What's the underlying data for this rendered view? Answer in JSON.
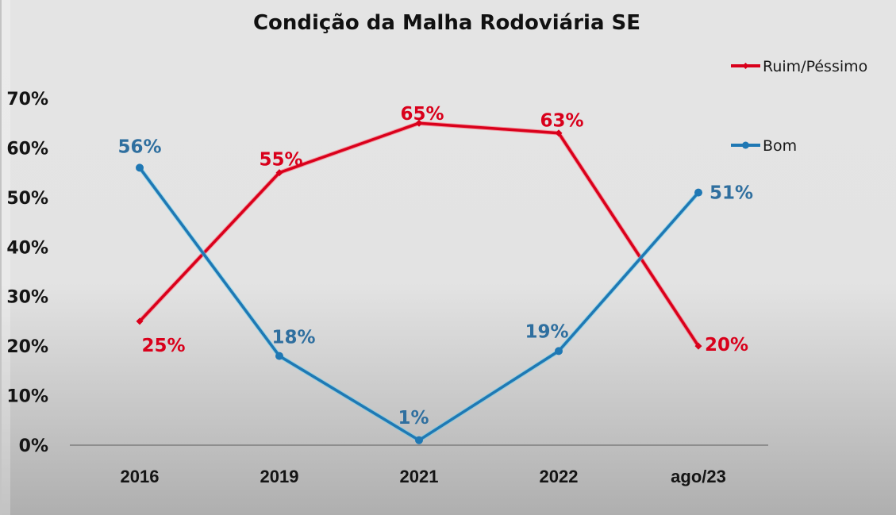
{
  "chart_data": {
    "type": "line",
    "title": "Condição da Malha Rodoviária SE",
    "xlabel": "",
    "ylabel": "",
    "categories": [
      "2016",
      "2019",
      "2021",
      "2022",
      "ago/23"
    ],
    "ylim": [
      0,
      70
    ],
    "yticks": [
      0,
      10,
      20,
      30,
      40,
      50,
      60,
      70
    ],
    "ytick_labels": [
      "0%",
      "10%",
      "20%",
      "30%",
      "40%",
      "50%",
      "60%",
      "70%"
    ],
    "grid": false,
    "legend_position": "top-right",
    "series": [
      {
        "name": "Ruim/Péssimo",
        "color": "#d9001b",
        "marker": "diamond",
        "values": [
          25,
          55,
          65,
          63,
          20
        ],
        "labels": [
          "25%",
          "55%",
          "65%",
          "63%",
          "20%"
        ]
      },
      {
        "name": "Bom",
        "color": "#1f78b4",
        "label_color": "#2f6f9f",
        "marker": "circle",
        "values": [
          56,
          18,
          1,
          19,
          51
        ],
        "labels": [
          "56%",
          "18%",
          "1%",
          "19%",
          "51%"
        ]
      }
    ]
  }
}
